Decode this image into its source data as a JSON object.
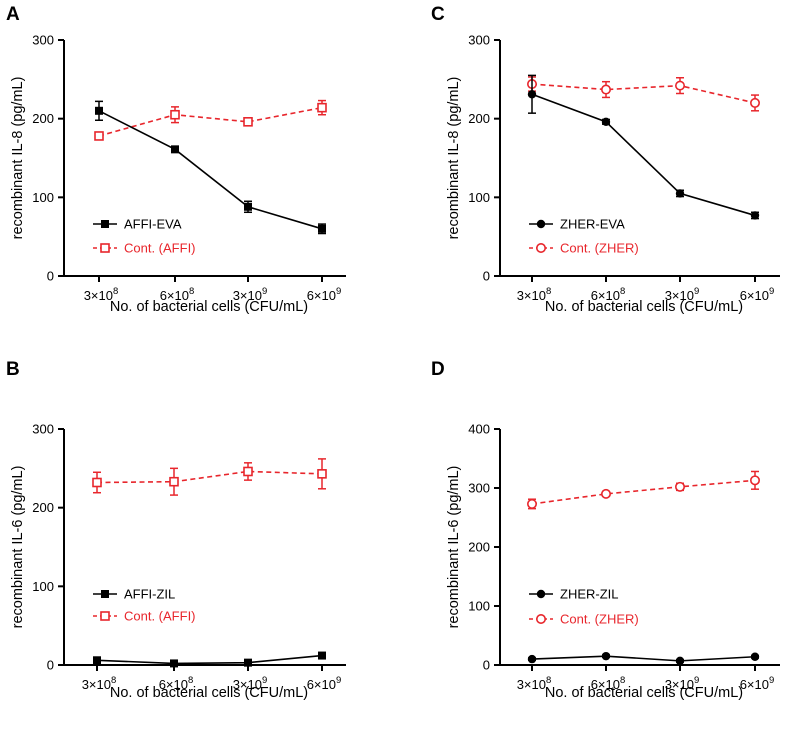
{
  "colors": {
    "control": "#e8262c",
    "treated": "#000000"
  },
  "x_tick_labels": [
    {
      "base": "3×10",
      "exp": "8"
    },
    {
      "base": "6×10",
      "exp": "8"
    },
    {
      "base": "3×10",
      "exp": "9"
    },
    {
      "base": "6×10",
      "exp": "9"
    }
  ],
  "chart_data": [
    {
      "panel": "A",
      "type": "line",
      "categories": [
        "3×10^8",
        "6×10^8",
        "3×10^9",
        "6×10^9"
      ],
      "xlabel": "No. of bacterial cells (CFU/mL)",
      "ylabel": "recombinant IL-8 (pg/mL)",
      "ylim": [
        0,
        300
      ],
      "yticks": [
        0,
        100,
        200,
        300
      ],
      "legend_position": "bottom-left",
      "series": [
        {
          "name": "AFFI-EVA",
          "style": "solid",
          "marker": "filled-square",
          "color": "#000000",
          "values": [
            210,
            161,
            88,
            60
          ],
          "errors": [
            12,
            3,
            7,
            6
          ]
        },
        {
          "name": "Cont. (AFFI)",
          "style": "dashed",
          "marker": "open-square",
          "color": "#e8262c",
          "values": [
            178,
            205,
            196,
            214
          ],
          "errors": [
            3,
            10,
            3,
            9
          ]
        }
      ]
    },
    {
      "panel": "C",
      "type": "line",
      "categories": [
        "3×10^8",
        "6×10^8",
        "3×10^9",
        "6×10^9"
      ],
      "xlabel": "No. of bacterial cells (CFU/mL)",
      "ylabel": "recombinant IL-8 (pg/mL)",
      "ylim": [
        0,
        300
      ],
      "yticks": [
        0,
        100,
        200,
        300
      ],
      "legend_position": "bottom-left",
      "series": [
        {
          "name": "ZHER-EVA",
          "style": "solid",
          "marker": "filled-circle",
          "color": "#000000",
          "values": [
            231,
            196,
            105,
            77
          ],
          "errors": [
            24,
            3,
            4,
            4
          ]
        },
        {
          "name": "Cont. (ZHER)",
          "style": "dashed",
          "marker": "open-circle",
          "color": "#e8262c",
          "values": [
            244,
            237,
            242,
            220
          ],
          "errors": [
            9,
            10,
            10,
            10
          ]
        }
      ]
    },
    {
      "panel": "B",
      "type": "line",
      "categories": [
        "3×10^8",
        "6×10^8",
        "3×10^9",
        "6×10^9"
      ],
      "xlabel": "No. of bacterial cells (CFU/mL)",
      "ylabel": "recombinant IL-6 (pg/mL)",
      "ylim": [
        0,
        300
      ],
      "yticks": [
        0,
        100,
        200,
        300
      ],
      "legend_position": "bottom-left",
      "series": [
        {
          "name": "AFFI-ZIL",
          "style": "solid",
          "marker": "filled-square",
          "color": "#000000",
          "values": [
            6,
            2,
            3,
            12
          ],
          "errors": [
            2,
            1,
            2,
            2
          ]
        },
        {
          "name": "Cont. (AFFI)",
          "style": "dashed",
          "marker": "open-square",
          "color": "#e8262c",
          "values": [
            232,
            233,
            246,
            243
          ],
          "errors": [
            13,
            17,
            11,
            19
          ]
        }
      ]
    },
    {
      "panel": "D",
      "type": "line",
      "categories": [
        "3×10^8",
        "6×10^8",
        "3×10^9",
        "6×10^9"
      ],
      "xlabel": "No. of bacterial cells (CFU/mL)",
      "ylabel": "recombinant IL-6 (pg/mL)",
      "ylim": [
        0,
        400
      ],
      "yticks": [
        0,
        100,
        200,
        300,
        400
      ],
      "legend_position": "bottom-left",
      "series": [
        {
          "name": "ZHER-ZIL",
          "style": "solid",
          "marker": "filled-circle",
          "color": "#000000",
          "values": [
            10,
            15,
            7,
            14
          ],
          "errors": [
            2,
            2,
            2,
            2
          ]
        },
        {
          "name": "Cont. (ZHER)",
          "style": "dashed",
          "marker": "open-circle",
          "color": "#e8262c",
          "values": [
            273,
            290,
            302,
            313
          ],
          "errors": [
            8,
            4,
            6,
            15
          ]
        }
      ]
    }
  ]
}
